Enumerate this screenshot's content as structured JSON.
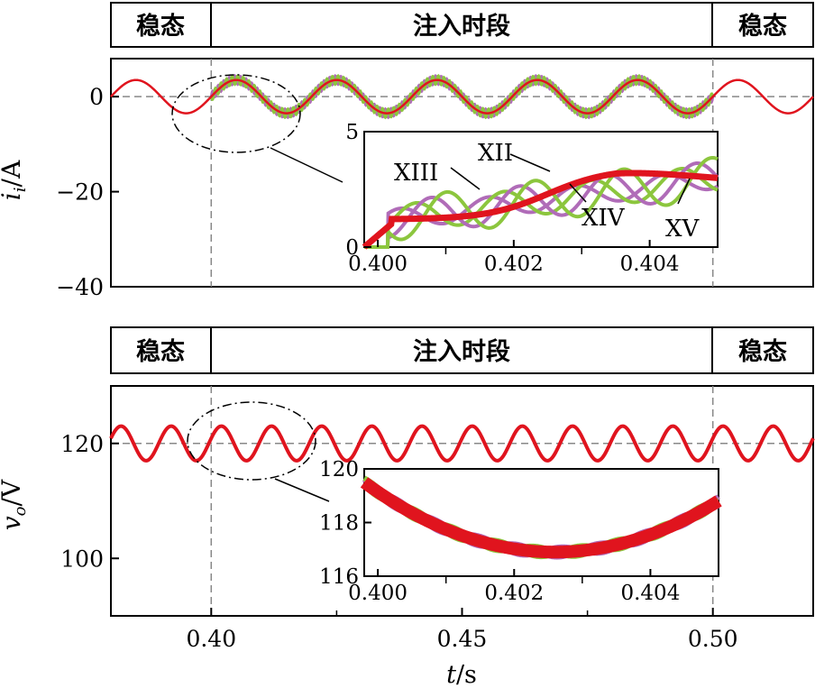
{
  "colors": {
    "red": "#e0141e",
    "green": "#8cc63e",
    "purple": "#b06cb8",
    "dash": "#888888",
    "axis": "#000000"
  },
  "phase_labels": [
    "稳态",
    "注入时段",
    "稳态"
  ],
  "annotation_labels": [
    "XIII",
    "XII",
    "XIV",
    "XV"
  ],
  "x_axis": {
    "label_italic": "t",
    "label_rest": "/s",
    "ticks": [
      "0.40",
      "0.45",
      "0.50"
    ]
  },
  "chart_data": [
    {
      "type": "line",
      "id": "current",
      "ylabel_main": "i",
      "ylabel_sub": "i",
      "ylabel_rest": "/A",
      "xlim": [
        0.38,
        0.52
      ],
      "ylim": [
        -40,
        8
      ],
      "yticks": [
        0,
        -20,
        -40
      ],
      "ytick_labels": [
        "0",
        "−20",
        "−40"
      ],
      "reference_line": 0,
      "phase_markers": [
        0.4,
        0.5
      ],
      "steady_amplitude": 3.5,
      "injected_amplitude": 3.5,
      "frequency_hz": 50,
      "inset": {
        "xlim": [
          0.3998,
          0.405
        ],
        "ylim": [
          0,
          5
        ],
        "xticks": [
          "0.400",
          "0.402",
          "0.404"
        ],
        "yticks": [
          "0",
          "5"
        ],
        "series": [
          "XII",
          "XIII",
          "XIV",
          "XV"
        ]
      }
    },
    {
      "type": "line",
      "id": "voltage",
      "ylabel_main": "v",
      "ylabel_sub": "o",
      "ylabel_rest": "/V",
      "xlim": [
        0.38,
        0.52
      ],
      "ylim": [
        90,
        130
      ],
      "yticks": [
        120,
        100
      ],
      "ytick_labels": [
        "120",
        "100"
      ],
      "reference_line": 120,
      "phase_markers": [
        0.4,
        0.5
      ],
      "ripple_amplitude": 3,
      "frequency_hz": 100,
      "inset": {
        "xlim": [
          0.3998,
          0.405
        ],
        "ylim": [
          116,
          120
        ],
        "xticks": [
          "0.400",
          "0.402",
          "0.404"
        ],
        "yticks": [
          "120",
          "118",
          "116"
        ],
        "series": [
          "XII",
          "XIII",
          "XIV",
          "XV"
        ]
      }
    }
  ]
}
